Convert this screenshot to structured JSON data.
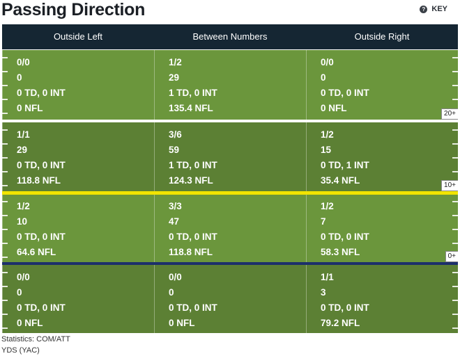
{
  "title": "Passing Direction",
  "key_label": "KEY",
  "columns": [
    "Outside Left",
    "Between Numbers",
    "Outside Right"
  ],
  "zones": [
    {
      "cells": [
        {
          "comp_att": "0/0",
          "yds": "0",
          "td_int": "0 TD, 0 INT",
          "rating": "0 NFL"
        },
        {
          "comp_att": "1/2",
          "yds": "29",
          "td_int": "1 TD, 0 INT",
          "rating": "135.4 NFL"
        },
        {
          "comp_att": "0/0",
          "yds": "0",
          "td_int": "0 TD, 0 INT",
          "rating": "0 NFL"
        }
      ]
    },
    {
      "cells": [
        {
          "comp_att": "1/1",
          "yds": "29",
          "td_int": "0 TD, 0 INT",
          "rating": "118.8 NFL"
        },
        {
          "comp_att": "3/6",
          "yds": "59",
          "td_int": "1 TD, 0 INT",
          "rating": "124.3 NFL"
        },
        {
          "comp_att": "1/2",
          "yds": "15",
          "td_int": "0 TD, 1 INT",
          "rating": "35.4 NFL"
        }
      ]
    },
    {
      "cells": [
        {
          "comp_att": "1/2",
          "yds": "10",
          "td_int": "0 TD, 0 INT",
          "rating": "64.6 NFL"
        },
        {
          "comp_att": "3/3",
          "yds": "47",
          "td_int": "0 TD, 0 INT",
          "rating": "118.8 NFL"
        },
        {
          "comp_att": "1/2",
          "yds": "7",
          "td_int": "0 TD, 0 INT",
          "rating": "58.3 NFL"
        }
      ]
    },
    {
      "cells": [
        {
          "comp_att": "0/0",
          "yds": "0",
          "td_int": "0 TD, 0 INT",
          "rating": "0 NFL"
        },
        {
          "comp_att": "0/0",
          "yds": "0",
          "td_int": "0 TD, 0 INT",
          "rating": "0 NFL"
        },
        {
          "comp_att": "1/1",
          "yds": "3",
          "td_int": "0 TD, 0 INT",
          "rating": "79.2 NFL"
        }
      ]
    }
  ],
  "yard_markers": [
    "20+",
    "10+",
    "0+"
  ],
  "colors": {
    "header_bg": "#152633",
    "zone_light": "#6b963c",
    "zone_dark": "#5c8034",
    "line_white": "#ffffff",
    "line_yellow": "#f2e400",
    "line_navy": "#1c2f6b"
  },
  "footnotes": [
    "Statistics: COM/ATT",
    "YDS (YAC)"
  ]
}
